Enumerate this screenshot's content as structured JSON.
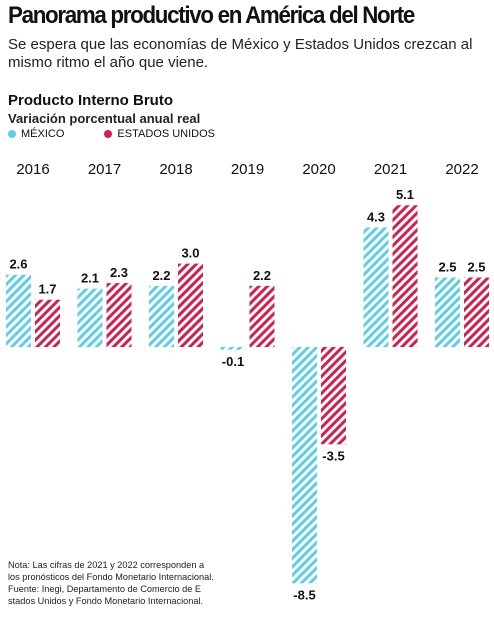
{
  "header": {
    "title": "Panorama productivo en América del Norte",
    "subtitle": "Se espera que las economías de México y Estados Unidos crezcan al mismo ritmo el año que viene."
  },
  "section": {
    "title": "Producto Interno Bruto",
    "subtitle": "Variación porcentual anual real"
  },
  "legend": {
    "items": [
      {
        "label": "MÉXICO",
        "color": "#5ccfe6"
      },
      {
        "label": "ESTADOS UNIDOS",
        "color": "#d41f4d"
      }
    ]
  },
  "chart_data": {
    "type": "bar",
    "title": "Producto Interno Bruto",
    "ylabel": "Variación porcentual anual real",
    "categories": [
      "2016",
      "2017",
      "2018",
      "2019",
      "2020",
      "2021",
      "2022"
    ],
    "series": [
      {
        "name": "MÉXICO",
        "color": "#5ccfe6",
        "values": [
          2.6,
          2.1,
          2.2,
          -0.1,
          -8.5,
          4.3,
          2.5
        ],
        "labels": [
          "2.6",
          "2.1",
          "2.2",
          "-0.1",
          "-8.5",
          "4.3",
          "2.5"
        ]
      },
      {
        "name": "ESTADOS UNIDOS",
        "color": "#d41f4d",
        "values": [
          1.7,
          2.3,
          3.0,
          2.2,
          -3.5,
          5.1,
          2.5
        ],
        "labels": [
          "1.7",
          "2.3",
          "3.0",
          "2.2",
          "-3.5",
          "5.1",
          "2.5"
        ]
      }
    ],
    "ylim": [
      -8.5,
      5.1
    ],
    "grid": false,
    "legend_position": "top-left",
    "style": "diagonal hatched bars"
  },
  "note": {
    "lines": [
      "Nota: Las cifras de 2021 y 2022 corresponden a",
      "los pronósticos del Fondo Monetario Internacional.",
      "Fuente: Inegi, Departamento de Comercio de E",
      "stados Unidos y Fondo Monetario Internacional."
    ]
  }
}
